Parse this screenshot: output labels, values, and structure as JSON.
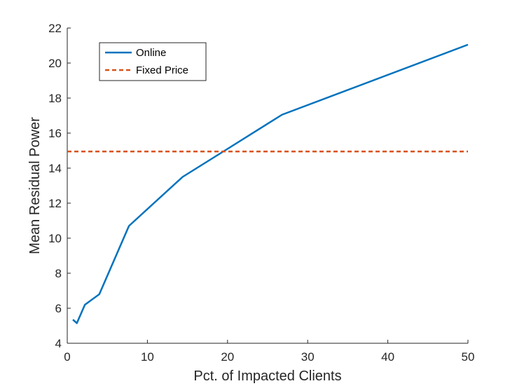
{
  "chart_data": {
    "type": "line",
    "title": "",
    "xlabel": "Pct. of Impacted Clients",
    "ylabel": "Mean Residual Power",
    "xlim": [
      0,
      50
    ],
    "ylim": [
      4,
      22
    ],
    "xticks": [
      0,
      10,
      20,
      30,
      40,
      50
    ],
    "yticks": [
      4,
      6,
      8,
      10,
      12,
      14,
      16,
      18,
      20,
      22
    ],
    "grid": false,
    "legend_position": "top-left",
    "series": [
      {
        "name": "Online",
        "style": "solid",
        "color": "#0072BD",
        "x": [
          0.7,
          1.2,
          2.2,
          4.0,
          7.7,
          14.4,
          20.0,
          26.8,
          50.0
        ],
        "y": [
          5.35,
          5.15,
          6.2,
          6.8,
          10.7,
          13.5,
          15.1,
          17.05,
          21.05
        ]
      },
      {
        "name": "Fixed Price",
        "style": "dashed",
        "color": "#D95319",
        "x": [
          0,
          50
        ],
        "y": [
          14.95,
          14.95
        ]
      }
    ]
  }
}
